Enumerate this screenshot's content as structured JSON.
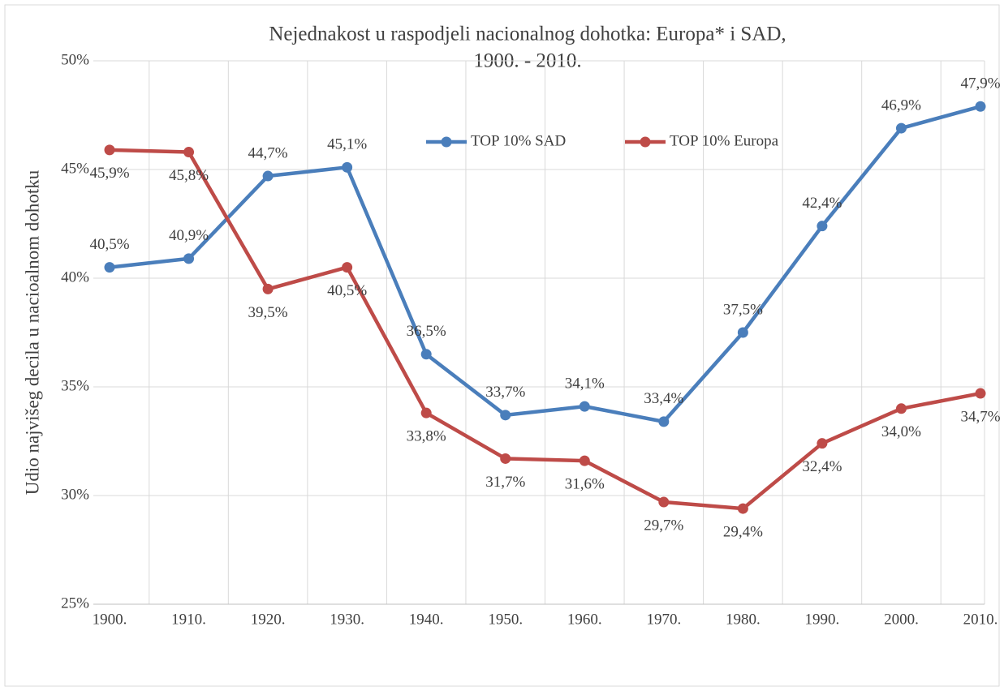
{
  "chart_data": {
    "type": "line",
    "title": [
      "Nejednakost u raspodjeli nacionalnog dohotka: Europa* i SAD,",
      "1900. - 2010."
    ],
    "y_label": "Udio najvišeg decila u nacioalnom dohotku",
    "categories": [
      "1900.",
      "1910.",
      "1920.",
      "1930.",
      "1940.",
      "1950.",
      "1960.",
      "1970.",
      "1980.",
      "1990.",
      "2000.",
      "2010."
    ],
    "series": [
      {
        "name": "TOP 10% SAD",
        "color": "#4a7ebb",
        "values": [
          40.5,
          40.9,
          44.7,
          45.1,
          36.5,
          33.7,
          34.1,
          33.4,
          37.5,
          42.4,
          46.9,
          47.9
        ],
        "value_labels": [
          "40,5%",
          "40,9%",
          "44,7%",
          "45,1%",
          "36,5%",
          "33,7%",
          "34,1%",
          "33,4%",
          "37,5%",
          "42,4%",
          "46,9%",
          "47,9%"
        ]
      },
      {
        "name": "TOP 10% Europa",
        "color": "#be4b48",
        "values": [
          45.9,
          45.8,
          39.5,
          40.5,
          33.8,
          31.7,
          31.6,
          29.7,
          29.4,
          32.4,
          34.0,
          34.7
        ],
        "value_labels": [
          "45,9%",
          "45,8%",
          "39,5%",
          "40,5%",
          "33,8%",
          "31,7%",
          "31,6%",
          "29,7%",
          "29,4%",
          "32,4%",
          "34,0%",
          "34,7%"
        ]
      }
    ],
    "ylim": [
      25,
      50
    ],
    "yticks": [
      {
        "value": 25,
        "label": "25%"
      },
      {
        "value": 30,
        "label": "30%"
      },
      {
        "value": 35,
        "label": "35%"
      },
      {
        "value": 40,
        "label": "40%"
      },
      {
        "value": 45,
        "label": "45%"
      },
      {
        "value": 50,
        "label": "50%"
      }
    ],
    "grid": true,
    "legend": "top"
  }
}
